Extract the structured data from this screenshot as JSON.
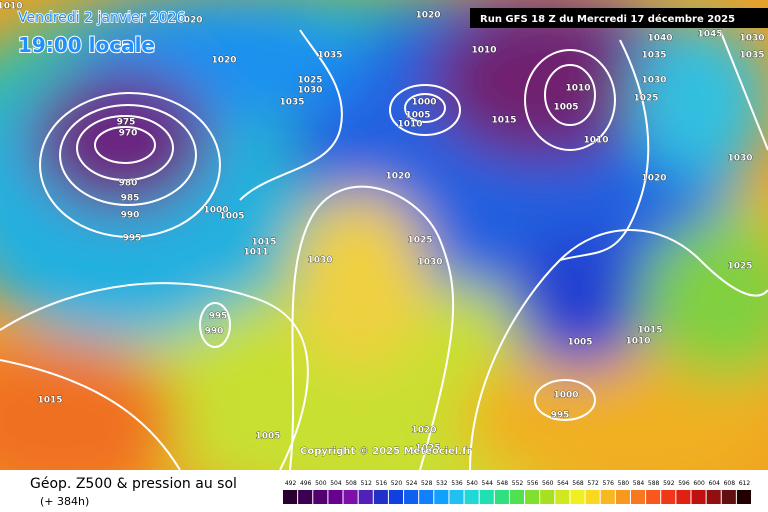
{
  "header": {
    "date": "Vendredi 2 janvier 2026",
    "time": "19:00 locale",
    "run": "Run GFS 18 Z du Mercredi 17 décembre 2025"
  },
  "map": {
    "copyright": "Copyright © 2025 Meteociel.fr",
    "isobar_labels": [
      1010,
      1020,
      1020,
      1010,
      1035,
      1025,
      1030,
      1035,
      1020,
      975,
      970,
      980,
      985,
      990,
      995,
      1000,
      1005,
      1015,
      1011,
      1000,
      1005,
      1010,
      1015,
      1010,
      1005,
      1010,
      1020,
      1025,
      1030,
      1030,
      995,
      990,
      1015,
      1005,
      1020,
      1025,
      1040,
      1045,
      1030,
      1035,
      1035,
      1030,
      1025,
      1030,
      1020,
      1025,
      1015,
      1010,
      1005,
      1000,
      995
    ]
  },
  "footer": {
    "title": "Géop. Z500 & pression au sol",
    "lead": "(+ 384h)",
    "scale": [
      492,
      496,
      500,
      504,
      508,
      512,
      516,
      520,
      524,
      528,
      532,
      536,
      540,
      544,
      548,
      552,
      556,
      560,
      564,
      568,
      572,
      576,
      580,
      584,
      588,
      592,
      596,
      600,
      604,
      608,
      612
    ]
  }
}
